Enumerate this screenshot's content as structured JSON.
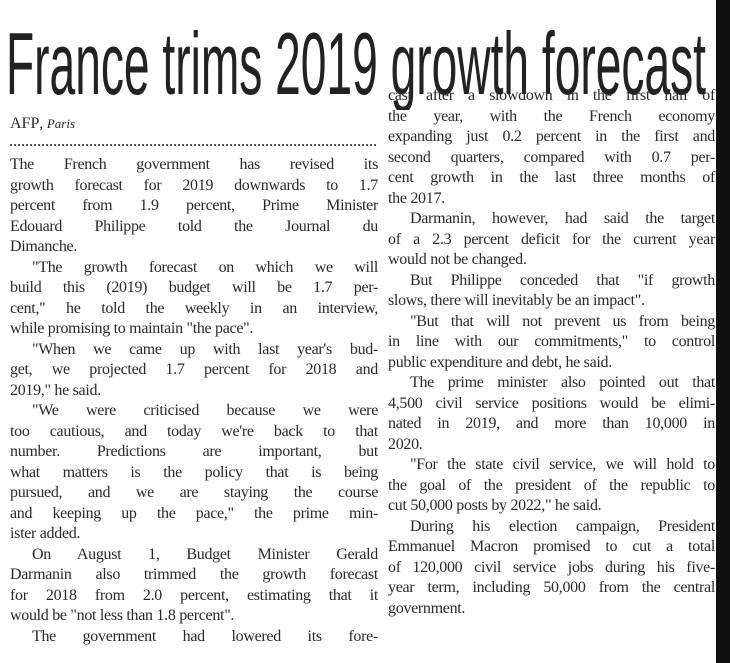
{
  "article": {
    "headline": "France trims 2019 growth forecast",
    "byline": {
      "agency": "AFP",
      "place": "Paris"
    },
    "left_column": [
      {
        "lines": [
          "The French government has revised its",
          "growth forecast for 2019 downwards to 1.7",
          "percent from 1.9 percent, Prime Minister",
          "Edouard Philippe told the Journal du",
          "Dimanche."
        ],
        "first": true
      },
      {
        "lines": [
          "\"The growth forecast on which we will",
          "build this (2019) budget will be 1.7 per-",
          "cent,\" he told the weekly in an interview,",
          "while promising to maintain \"the pace\"."
        ]
      },
      {
        "lines": [
          "\"When we came up with last year's bud-",
          "get, we projected 1.7 percent for 2018 and",
          "2019,\" he said."
        ]
      },
      {
        "lines": [
          "\"We were criticised because we were",
          "too cautious, and today we're back to that",
          "number. Predictions are important, but",
          "what matters is the policy that is being",
          "pursued, and we are staying the course",
          "and keeping up the pace,\" the prime min-",
          "ister added."
        ]
      },
      {
        "lines": [
          "On August 1, Budget Minister Gerald",
          "Darmanin also trimmed the growth forecast",
          "for 2018 from 2.0 percent, estimating that it",
          "would be \"not less than 1.8 percent\"."
        ]
      },
      {
        "lines": [
          "The government had lowered its fore-"
        ],
        "continues": true
      }
    ],
    "right_column": [
      {
        "lines": [
          "cast after a slowdown in the first half of",
          "the year, with the French economy",
          "expanding just 0.2 percent in the first and",
          "second quarters, compared with 0.7 per-",
          "cent growth in the last three months of",
          "the 2017."
        ],
        "first": true
      },
      {
        "lines": [
          "Darmanin, however, had said the target",
          "of a 2.3 percent deficit for the current year",
          "would not be changed."
        ]
      },
      {
        "lines": [
          "But Philippe conceded that \"if growth",
          "slows, there will inevitably be an impact\"."
        ]
      },
      {
        "lines": [
          "\"But that will not prevent us from being",
          "in line with our commitments,\" to control",
          "public expenditure and debt, he said."
        ]
      },
      {
        "lines": [
          "The prime minister also pointed out that",
          "4,500 civil service positions would be elimi-",
          "nated in 2019, and more than 10,000 in",
          "2020."
        ]
      },
      {
        "lines": [
          "\"For the state civil service, we will hold to",
          "the goal of the president of the republic to",
          "cut 50,000 posts by 2022,\" he said."
        ]
      },
      {
        "lines": [
          "During his election campaign, President",
          "Emmanuel Macron promised to cut a total",
          "of 120,000 civil service jobs during his five-",
          "year term, including 50,000 from the central",
          "government."
        ]
      }
    ]
  }
}
